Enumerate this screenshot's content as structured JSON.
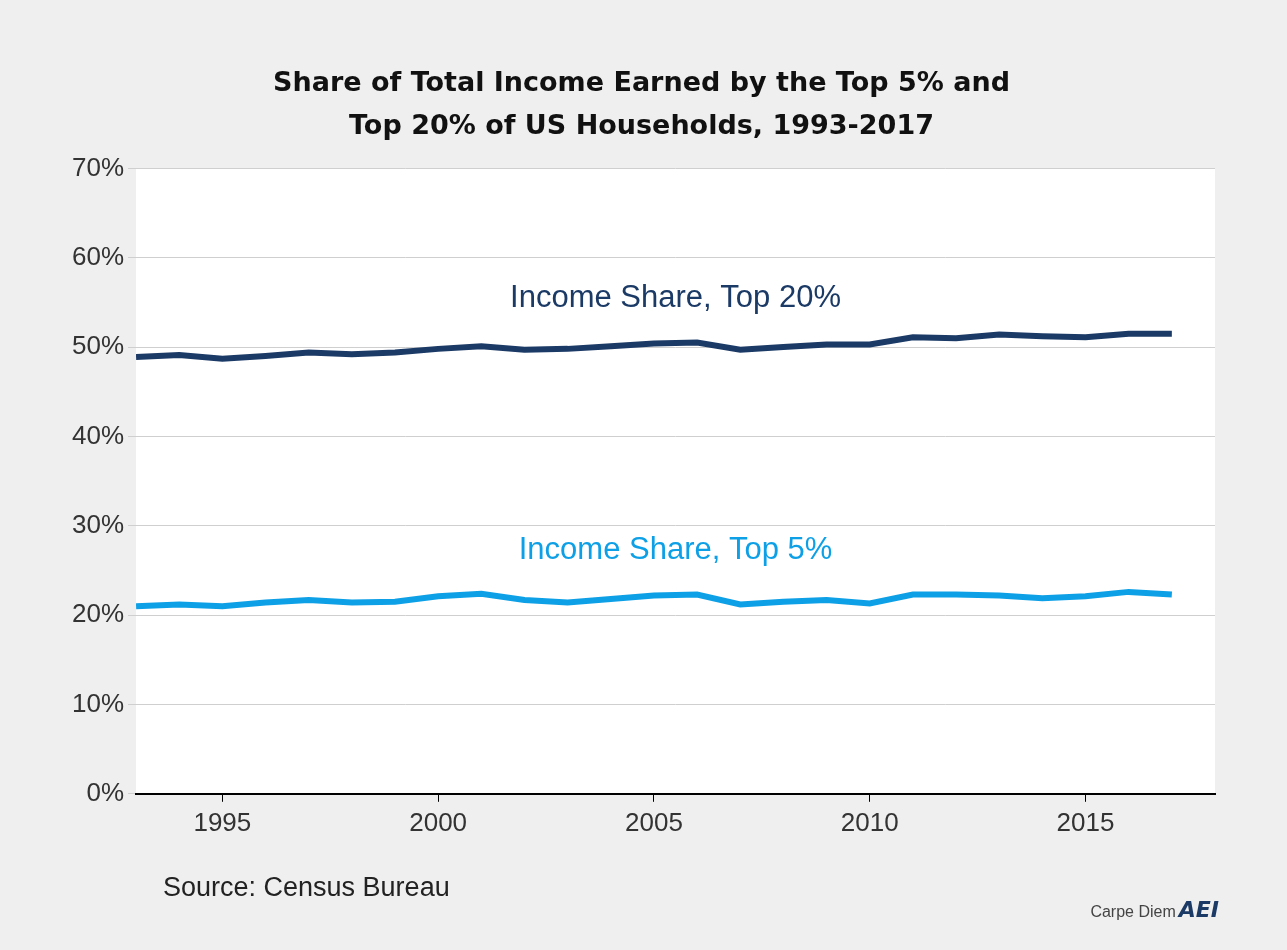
{
  "chart_data": {
    "type": "line",
    "title": [
      "Share of Total Income Earned by the Top 5% and",
      "Top 20% of US Households, 1993-2017"
    ],
    "source": "Source: Census Bureau",
    "credit": "Carpe Diem",
    "logo": "AEI",
    "x": [
      1993,
      1994,
      1995,
      1996,
      1997,
      1998,
      1999,
      2000,
      2001,
      2002,
      2003,
      2004,
      2005,
      2006,
      2007,
      2008,
      2009,
      2010,
      2011,
      2012,
      2013,
      2014,
      2015,
      2016,
      2017
    ],
    "series": [
      {
        "name": "Income Share, Top 20%",
        "color": "#1b3a66",
        "values": [
          48.9,
          49.1,
          48.7,
          49.0,
          49.4,
          49.2,
          49.4,
          49.8,
          50.1,
          49.7,
          49.8,
          50.1,
          50.4,
          50.5,
          49.7,
          50.0,
          50.3,
          50.3,
          51.1,
          51.0,
          51.4,
          51.2,
          51.1,
          51.5,
          51.5
        ]
      },
      {
        "name": "Income Share, Top 5%",
        "color": "#0ea0e6",
        "values": [
          21.0,
          21.2,
          21.0,
          21.4,
          21.7,
          21.4,
          21.5,
          22.1,
          22.4,
          21.7,
          21.4,
          21.8,
          22.2,
          22.3,
          21.2,
          21.5,
          21.7,
          21.3,
          22.3,
          22.3,
          22.2,
          21.9,
          22.1,
          22.6,
          22.3
        ]
      }
    ],
    "xlim": [
      1993,
      2018
    ],
    "xticks": [
      1995,
      2000,
      2005,
      2010,
      2015
    ],
    "ylim": [
      0,
      70
    ],
    "yticks": [
      {
        "value": 0,
        "label": "0%"
      },
      {
        "value": 10,
        "label": "10%"
      },
      {
        "value": 20,
        "label": "20%"
      },
      {
        "value": 30,
        "label": "30%"
      },
      {
        "value": 40,
        "label": "40%"
      },
      {
        "value": 50,
        "label": "50%"
      },
      {
        "value": 60,
        "label": "60%"
      },
      {
        "value": 70,
        "label": "70%"
      }
    ],
    "grid": true
  }
}
